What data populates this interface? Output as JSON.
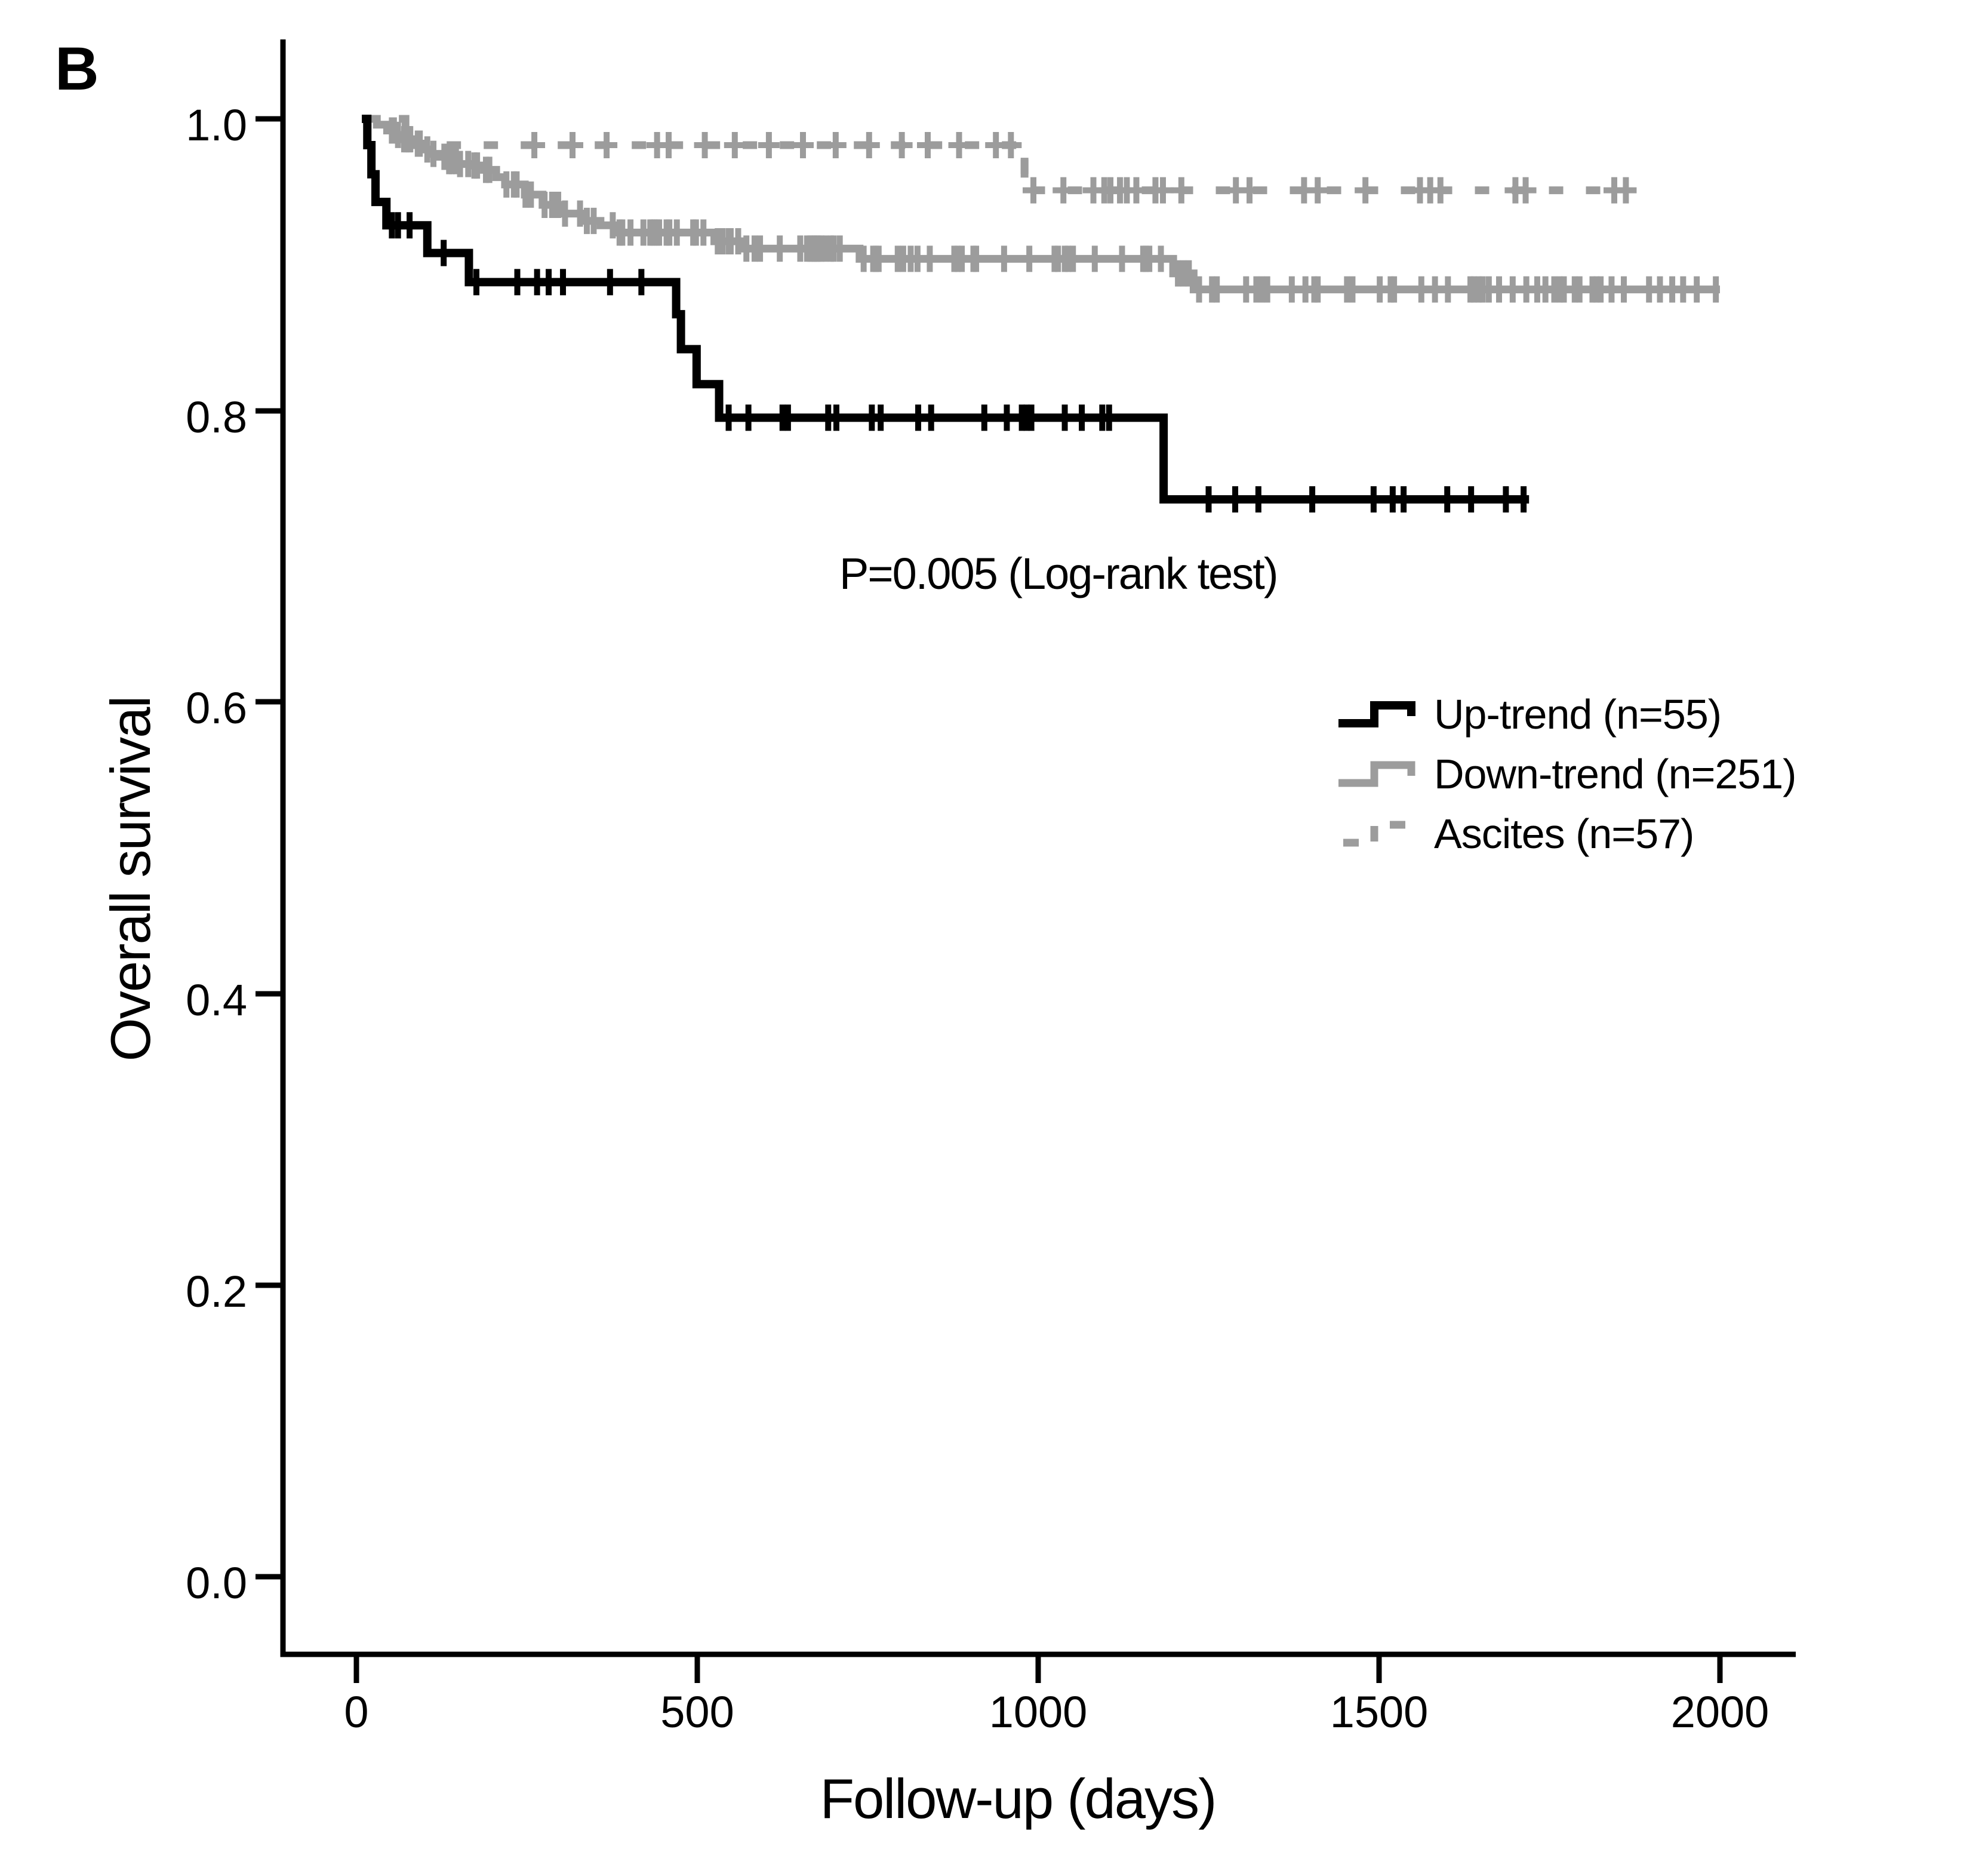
{
  "figure": {
    "panel_label": "B",
    "background": "#ffffff",
    "ink_color": "#000000"
  },
  "chart_data": {
    "type": "line",
    "subtype": "kaplan-meier-step-survival",
    "title": "",
    "xlabel": "Follow-up (days)",
    "ylabel": "Overall survival",
    "annotation": "P=0.005 (Log-rank test)",
    "x_tick_values": [
      0,
      500,
      1000,
      1500,
      2000
    ],
    "x_tick_labels": [
      "0",
      "500",
      "1000",
      "1500",
      "2000"
    ],
    "y_tick_values": [
      1.0,
      0.8,
      0.6,
      0.4,
      0.2,
      0.0
    ],
    "y_tick_labels": [
      "1.0",
      "0.8",
      "0.6",
      "0.4",
      "0.2",
      "0.0"
    ],
    "xlim": [
      -108,
      2108
    ],
    "ylim": [
      -0.053,
      1.053
    ],
    "grid": false,
    "legend_position": "right-middle",
    "series": [
      {
        "name": "Up-trend (n=55)",
        "color": "#000000",
        "style": "solid",
        "stroke_width": 14,
        "censor_mark": "tick",
        "steps": [
          [
            8,
            1.0
          ],
          [
            16,
            0.982
          ],
          [
            22,
            0.962
          ],
          [
            28,
            0.943
          ],
          [
            44,
            0.927
          ],
          [
            104,
            0.908
          ],
          [
            165,
            0.888
          ],
          [
            469,
            0.866
          ],
          [
            476,
            0.842
          ],
          [
            499,
            0.818
          ],
          [
            532,
            0.795
          ],
          [
            1184,
            0.739
          ]
        ],
        "end_day": 1720,
        "censor_days": [
          52,
          61,
          78,
          128,
          176,
          236,
          265,
          282,
          303,
          372,
          418,
          546,
          575,
          625,
          633,
          692,
          704,
          756,
          769,
          824,
          843,
          921,
          954,
          976,
          983,
          990,
          1039,
          1064,
          1094,
          1104,
          1250,
          1289,
          1323,
          1402,
          1492,
          1520,
          1536,
          1600,
          1635,
          1686,
          1712
        ]
      },
      {
        "name": "Down-trend (n=251)",
        "color": "#9c9c9c",
        "style": "solid",
        "stroke_width": 13,
        "censor_mark": "tick",
        "steps": [
          [
            8,
            1.0
          ],
          [
            30,
            0.996
          ],
          [
            45,
            0.992
          ],
          [
            58,
            0.989
          ],
          [
            70,
            0.986
          ],
          [
            81,
            0.983
          ],
          [
            95,
            0.979
          ],
          [
            110,
            0.976
          ],
          [
            122,
            0.974
          ],
          [
            132,
            0.971
          ],
          [
            150,
            0.969
          ],
          [
            168,
            0.968
          ],
          [
            187,
            0.965
          ],
          [
            205,
            0.96
          ],
          [
            218,
            0.955
          ],
          [
            247,
            0.948
          ],
          [
            273,
            0.941
          ],
          [
            304,
            0.935
          ],
          [
            336,
            0.93
          ],
          [
            358,
            0.927
          ],
          [
            379,
            0.922
          ],
          [
            525,
            0.916
          ],
          [
            566,
            0.911
          ],
          [
            738,
            0.904
          ],
          [
            1198,
            0.894
          ],
          [
            1228,
            0.883
          ]
        ],
        "end_day": 2000,
        "censor_days": [
          52,
          55,
          61,
          70,
          73,
          77,
          79,
          90,
          93,
          104,
          113,
          129,
          136,
          140,
          146,
          152,
          164,
          173,
          177,
          190,
          195,
          220,
          231,
          235,
          248,
          256,
          276,
          287,
          291,
          296,
          306,
          328,
          338,
          348,
          376,
          386,
          390,
          402,
          421,
          431,
          434,
          437,
          441,
          444,
          455,
          459,
          470,
          494,
          498,
          509,
          530,
          533,
          537,
          546,
          549,
          560,
          572,
          584,
          592,
          621,
          651,
          661,
          666,
          669,
          672,
          675,
          678,
          682,
          688,
          696,
          700,
          709,
          744,
          758,
          762,
          766,
          794,
          802,
          813,
          823,
          841,
          877,
          882,
          888,
          905,
          909,
          950,
          987,
          1024,
          1029,
          1039,
          1044,
          1051,
          1083,
          1123,
          1154,
          1158,
          1163,
          1180,
          1205,
          1213,
          1221,
          1236,
          1255,
          1262,
          1305,
          1320,
          1328,
          1336,
          1372,
          1392,
          1405,
          1410,
          1453,
          1461,
          1501,
          1517,
          1522,
          1562,
          1582,
          1601,
          1634,
          1639,
          1646,
          1652,
          1661,
          1676,
          1696,
          1716,
          1732,
          1744,
          1757,
          1765,
          1771,
          1787,
          1794,
          1813,
          1819,
          1825,
          1841,
          1859,
          1896,
          1912,
          1930,
          1946,
          1966,
          1994
        ]
      },
      {
        "name": "Ascites (n=57)",
        "color": "#9c9c9c",
        "style": "dashed",
        "dash": [
          24,
          38
        ],
        "stroke_width": 13,
        "censor_mark": "plus",
        "steps": [
          [
            8,
            1.0
          ],
          [
            72,
            0.982
          ],
          [
            980,
            0.951
          ]
        ],
        "end_day": 1865,
        "censor_days": [
          261,
          317,
          367,
          441,
          458,
          511,
          555,
          605,
          655,
          703,
          752,
          800,
          838,
          884,
          938,
          960,
          993,
          1037,
          1081,
          1097,
          1106,
          1120,
          1130,
          1144,
          1172,
          1183,
          1210,
          1290,
          1310,
          1390,
          1410,
          1480,
          1560,
          1575,
          1590,
          1700,
          1715,
          1845,
          1862
        ]
      }
    ]
  }
}
